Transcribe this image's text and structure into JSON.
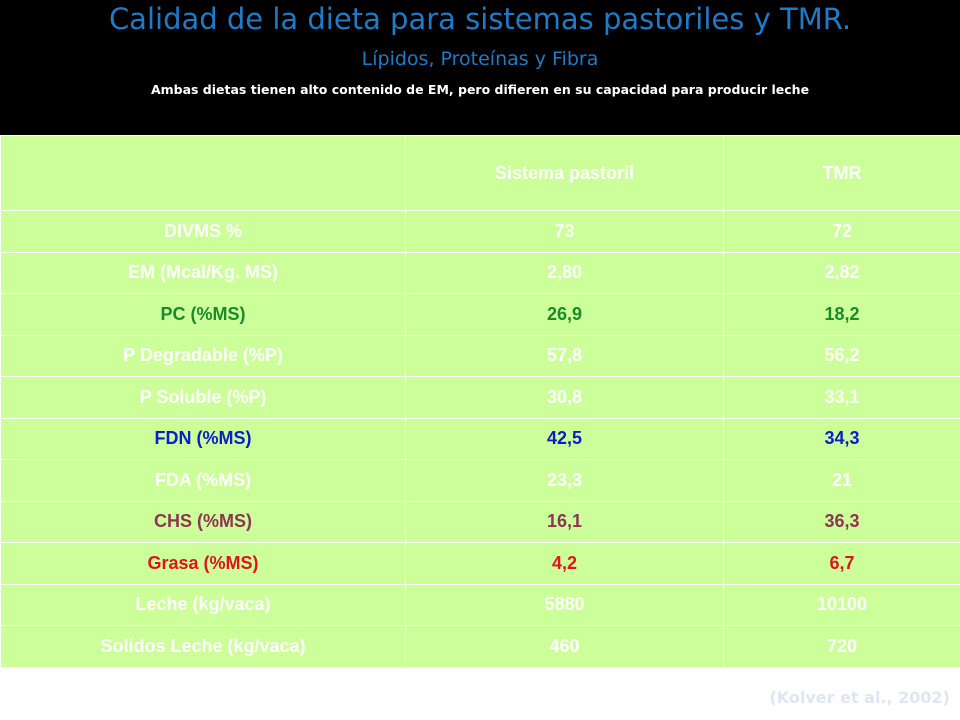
{
  "header": {
    "title": "Calidad de la dieta para sistemas pastoriles y TMR.",
    "subtitle": "Lípidos, Proteínas y Fibra",
    "note": "Ambas dietas tienen alto contenido de EM, pero difieren en su capacidad para producir leche"
  },
  "table": {
    "columns": [
      "",
      "Sistema pastoril",
      "TMR"
    ],
    "cell_background": "#ccff99",
    "rows": [
      {
        "label": "DIVMS %",
        "pastoril": "73",
        "tmr": "72",
        "color": "#ffffff"
      },
      {
        "label": "EM (Mcal/Kg. MS)",
        "pastoril": "2,80",
        "tmr": "2,82",
        "color": "#ffffff"
      },
      {
        "label": "PC (%MS)",
        "pastoril": "26,9",
        "tmr": "18,2",
        "color": "#1a8a2a"
      },
      {
        "label": "P Degradable (%P)",
        "pastoril": "57,8",
        "tmr": "56,2",
        "color": "#ffffff"
      },
      {
        "label": "P Soluble (%P)",
        "pastoril": "30,8",
        "tmr": "33,1",
        "color": "#ffffff"
      },
      {
        "label": "FDN (%MS)",
        "pastoril": "42,5",
        "tmr": "34,3",
        "color": "#0a1fc8"
      },
      {
        "label": "FDA (%MS)",
        "pastoril": "23,3",
        "tmr": "21",
        "color": "#ffffff"
      },
      {
        "label": "CHS (%MS)",
        "pastoril": "16,1",
        "tmr": "36,3",
        "color": "#8e3553"
      },
      {
        "label": "Grasa (%MS)",
        "pastoril": "4,2",
        "tmr": "6,7",
        "color": "#e0141c"
      },
      {
        "label": "Leche (kg/vaca)",
        "pastoril": "5880",
        "tmr": "10100",
        "color": "#ffffff"
      },
      {
        "label": "Solidos Leche (kg/vaca)",
        "pastoril": "460",
        "tmr": "720",
        "color": "#ffffff"
      }
    ]
  },
  "citation": "(Kolver et al., 2002)"
}
